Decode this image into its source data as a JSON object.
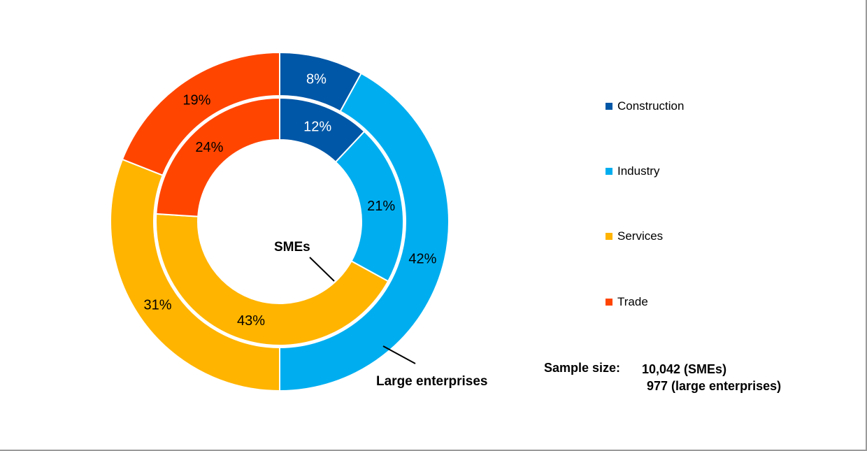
{
  "chart_data": {
    "type": "pie",
    "subtype": "double_donut",
    "title": "",
    "categories": [
      "Construction",
      "Industry",
      "Services",
      "Trade"
    ],
    "colors": [
      "#0057A7",
      "#00AEEF",
      "#FFB400",
      "#FF4500"
    ],
    "label_colors": [
      "#FFFFFF",
      "#000000",
      "#000000",
      "#000000"
    ],
    "series": [
      {
        "name": "SMEs",
        "ring": "inner",
        "values": [
          12,
          21,
          43,
          24
        ],
        "labels": [
          "12%",
          "21%",
          "43%",
          "24%"
        ]
      },
      {
        "name": "Large enterprises",
        "ring": "outer",
        "values": [
          8,
          42,
          31,
          19
        ],
        "labels": [
          "8%",
          "42%",
          "31%",
          "19%"
        ]
      }
    ],
    "start_angle_deg": 0,
    "direction": "clockwise",
    "legend_position": "right",
    "legend_entries": [
      "Construction",
      "Industry",
      "Services",
      "Trade"
    ]
  },
  "legend": {
    "items": [
      {
        "label": "Construction"
      },
      {
        "label": "Industry"
      },
      {
        "label": "Services"
      },
      {
        "label": "Trade"
      }
    ]
  },
  "annotations": {
    "inner_ring_label": "SMEs",
    "outer_ring_label": "Large enterprises"
  },
  "sample_size": {
    "label": "Sample size:",
    "line1": "10,042 (SMEs)",
    "line2": "977 (large enterprises)"
  }
}
